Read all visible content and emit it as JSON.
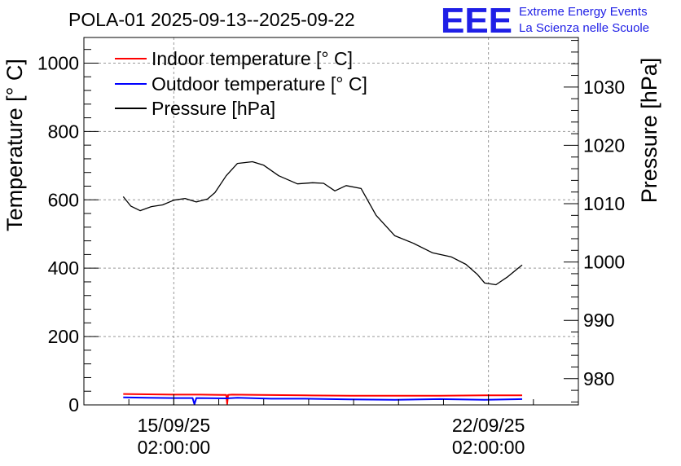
{
  "chart_data": {
    "type": "line",
    "title": "POLA-01 2025-09-13--2025-09-22",
    "ylabel": "Temperature [° C]",
    "y2label": "Pressure [hPa]",
    "ylim": [
      0,
      1075
    ],
    "y2lim": [
      975.5,
      1038.5
    ],
    "yticks": [
      0,
      200,
      400,
      600,
      800,
      1000
    ],
    "y2ticks": [
      980,
      990,
      1000,
      1010,
      1020,
      1030
    ],
    "xlim": [
      "2025-09-13 02:00",
      "2025-09-24 02:00"
    ],
    "xticks": [
      {
        "x": "2025-09-15 02:00",
        "line1": "15/09/25",
        "line2": "02:00:00"
      },
      {
        "x": "2025-09-22 02:00",
        "line1": "22/09/25",
        "line2": "02:00:00"
      }
    ],
    "grid": true,
    "legend_position": "top-left",
    "series": [
      {
        "name": "Indoor temperature [° C]",
        "axis": "left",
        "color": "#ff0000",
        "x": [
          "2025-09-13 23:00",
          "2025-09-14 12:00",
          "2025-09-15 02:00",
          "2025-09-15 16:00",
          "2025-09-16 04:00",
          "2025-09-16 06:00",
          "2025-09-16 06:30",
          "2025-09-16 07:00",
          "2025-09-16 09:00",
          "2025-09-17 00:00",
          "2025-09-18 00:00",
          "2025-09-19 00:00",
          "2025-09-20 00:00",
          "2025-09-21 00:00",
          "2025-09-22 00:00",
          "2025-09-22 20:00"
        ],
        "y": [
          32,
          31,
          30,
          30,
          29,
          29,
          3,
          29,
          30,
          29,
          28,
          27,
          27,
          27,
          28,
          28
        ]
      },
      {
        "name": "Outdoor temperature [° C]",
        "axis": "left",
        "color": "#0000ff",
        "x": [
          "2025-09-13 23:00",
          "2025-09-14 12:00",
          "2025-09-15 02:00",
          "2025-09-15 12:00",
          "2025-09-15 13:00",
          "2025-09-15 14:00",
          "2025-09-16 06:00",
          "2025-09-16 12:00",
          "2025-09-17 06:00",
          "2025-09-18 00:00",
          "2025-09-19 00:00",
          "2025-09-20 00:00",
          "2025-09-21 00:00",
          "2025-09-22 00:00",
          "2025-09-22 20:00"
        ],
        "y": [
          22,
          21,
          20,
          20,
          2,
          20,
          19,
          21,
          18,
          18,
          16,
          15,
          17,
          15,
          17
        ]
      },
      {
        "name": "Pressure [hPa]",
        "axis": "right",
        "color": "#000000",
        "x": [
          "2025-09-13 23:00",
          "2025-09-14 03:00",
          "2025-09-14 08:00",
          "2025-09-14 14:00",
          "2025-09-14 20:00",
          "2025-09-15 02:00",
          "2025-09-15 08:00",
          "2025-09-15 14:00",
          "2025-09-15 20:00",
          "2025-09-16 00:00",
          "2025-09-16 06:00",
          "2025-09-16 12:00",
          "2025-09-16 20:00",
          "2025-09-17 02:00",
          "2025-09-17 10:00",
          "2025-09-17 20:00",
          "2025-09-18 04:00",
          "2025-09-18 10:00",
          "2025-09-18 16:00",
          "2025-09-18 22:00",
          "2025-09-19 06:00",
          "2025-09-19 14:00",
          "2025-09-20 00:00",
          "2025-09-20 10:00",
          "2025-09-20 20:00",
          "2025-09-21 06:00",
          "2025-09-21 14:00",
          "2025-09-21 20:00",
          "2025-09-22 00:00",
          "2025-09-22 06:00",
          "2025-09-22 12:00",
          "2025-09-22 20:00"
        ],
        "y": [
          1011.2,
          1009.6,
          1008.8,
          1009.5,
          1009.8,
          1010.6,
          1010.9,
          1010.3,
          1010.8,
          1011.9,
          1014.8,
          1016.9,
          1017.2,
          1016.6,
          1014.8,
          1013.4,
          1013.6,
          1013.5,
          1012.2,
          1013.1,
          1012.6,
          1008.0,
          1004.5,
          1003.2,
          1001.6,
          1000.9,
          999.6,
          997.9,
          996.4,
          996.1,
          997.4,
          999.5
        ]
      }
    ]
  },
  "logo": {
    "mark": "EEE",
    "line1": "Extreme Energy Events",
    "line2": "La Scienza nelle Scuole",
    "color": "#1f1fe6"
  }
}
